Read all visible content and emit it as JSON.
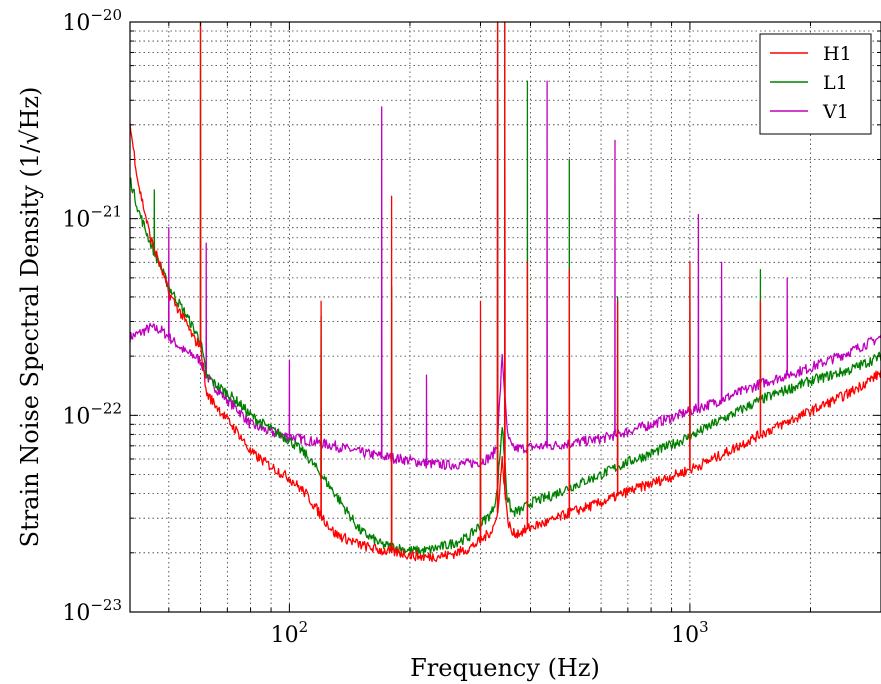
{
  "chart_data": {
    "type": "line",
    "title": "",
    "xlabel": "Frequency (Hz)",
    "ylabel": "Strain Noise Spectral Density (1/√Hz)",
    "x_scale": "log",
    "y_scale": "log",
    "xlim": [
      40,
      3000
    ],
    "ylim": [
      1e-23,
      1e-20
    ],
    "x_ticks": [
      {
        "base": "10",
        "exp": "2",
        "value": 100
      },
      {
        "base": "10",
        "exp": "3",
        "value": 1000
      }
    ],
    "y_ticks": [
      {
        "base": "10",
        "exp": "−23",
        "value": 1e-23
      },
      {
        "base": "10",
        "exp": "−22",
        "value": 1e-22
      },
      {
        "base": "10",
        "exp": "−21",
        "value": 1e-21
      },
      {
        "base": "10",
        "exp": "−20",
        "value": 1e-20
      }
    ],
    "grid": true,
    "legend_position": "top-right",
    "series": [
      {
        "name": "H1",
        "color": "#ff0000",
        "x": [
          40,
          42,
          45,
          48,
          50,
          55,
          58,
          60,
          62,
          65,
          70,
          75,
          80,
          90,
          100,
          110,
          120,
          130,
          150,
          170,
          190,
          200,
          220,
          250,
          280,
          300,
          320,
          330,
          340,
          350,
          360,
          380,
          400,
          450,
          500,
          600,
          700,
          800,
          1000,
          1200,
          1500,
          2000,
          2500,
          3000
        ],
        "y": [
          3e-21,
          1.5e-21,
          8e-22,
          5.5e-22,
          4.2e-22,
          3e-22,
          2.4e-22,
          2.3e-22,
          1.3e-22,
          1.15e-22,
          9.5e-23,
          8e-23,
          6.5e-23,
          5.5e-23,
          4.8e-23,
          4e-23,
          3.1e-23,
          2.5e-23,
          2.2e-23,
          2.05e-23,
          2e-23,
          1.95e-23,
          1.9e-23,
          1.95e-23,
          2.1e-23,
          2.3e-23,
          2.6e-23,
          3e-23,
          6e-23,
          3e-23,
          2.5e-23,
          2.55e-23,
          2.7e-23,
          2.9e-23,
          3.2e-23,
          3.6e-23,
          4.1e-23,
          4.5e-23,
          5.3e-23,
          6.3e-23,
          8e-23,
          1.05e-22,
          1.3e-22,
          1.65e-22
        ]
      },
      {
        "name": "L1",
        "color": "#008000",
        "x": [
          40,
          42,
          45,
          48,
          50,
          55,
          58,
          60,
          62,
          65,
          70,
          75,
          80,
          90,
          100,
          110,
          120,
          130,
          150,
          170,
          190,
          200,
          220,
          250,
          280,
          300,
          320,
          330,
          340,
          350,
          360,
          380,
          400,
          450,
          500,
          600,
          700,
          800,
          1000,
          1200,
          1500,
          2000,
          2500,
          3000
        ],
        "y": [
          1.6e-21,
          1.1e-21,
          7.5e-22,
          5.5e-22,
          4.5e-22,
          3.3e-22,
          2.7e-22,
          2.4e-22,
          1.6e-22,
          1.45e-22,
          1.3e-22,
          1.15e-22,
          1e-22,
          8.5e-23,
          7.5e-23,
          6.3e-23,
          5e-23,
          4e-23,
          2.6e-23,
          2.2e-23,
          2.1e-23,
          2.05e-23,
          2.05e-23,
          2.2e-23,
          2.4e-23,
          2.8e-23,
          3.2e-23,
          4e-23,
          9e-23,
          3.8e-23,
          3.2e-23,
          3.3e-23,
          3.6e-23,
          3.9e-23,
          4.3e-23,
          5e-23,
          5.8e-23,
          6.4e-23,
          7.8e-23,
          9.5e-23,
          1.2e-22,
          1.5e-22,
          1.7e-22,
          2e-22
        ]
      },
      {
        "name": "V1",
        "color": "#bf00bf",
        "x": [
          40,
          42,
          45,
          48,
          50,
          55,
          58,
          60,
          62,
          65,
          70,
          75,
          80,
          90,
          100,
          110,
          120,
          130,
          150,
          170,
          190,
          200,
          220,
          250,
          280,
          300,
          320,
          330,
          340,
          350,
          360,
          380,
          400,
          450,
          500,
          600,
          700,
          800,
          1000,
          1200,
          1500,
          2000,
          2500,
          3000
        ],
        "y": [
          2.5e-22,
          2.6e-22,
          2.8e-22,
          2.7e-22,
          2.5e-22,
          2.1e-22,
          2e-22,
          1.9e-22,
          1.6e-22,
          1.4e-22,
          1.2e-22,
          1.05e-22,
          9e-23,
          8.2e-23,
          7.8e-23,
          7.5e-23,
          7.2e-23,
          7e-23,
          6.5e-23,
          6.2e-23,
          6e-23,
          5.9e-23,
          5.7e-23,
          5.6e-23,
          5.7e-23,
          5.8e-23,
          6.2e-23,
          7e-23,
          2e-22,
          8e-23,
          6.8e-23,
          6.8e-23,
          6.9e-23,
          7e-23,
          7.2e-23,
          7.6e-23,
          8.3e-23,
          9e-23,
          1.05e-22,
          1.2e-22,
          1.45e-22,
          1.75e-22,
          2.1e-22,
          2.5e-22
        ]
      }
    ],
    "spikes": [
      {
        "series": "H1",
        "peaks": [
          [
            60,
            1e-20
          ],
          [
            120,
            3.8e-22
          ],
          [
            180,
            1.3e-21
          ],
          [
            300,
            3.8e-22
          ],
          [
            331,
            1e-20
          ],
          [
            345,
            1e-20
          ],
          [
            393,
            6e-22
          ],
          [
            500,
            5.5e-22
          ],
          [
            660,
            3.8e-22
          ],
          [
            1000,
            6e-22
          ],
          [
            1500,
            3.8e-22
          ]
        ]
      },
      {
        "series": "L1",
        "peaks": [
          [
            46,
            1.4e-21
          ],
          [
            60,
            1e-20
          ],
          [
            120,
            3.2e-22
          ],
          [
            180,
            4.5e-22
          ],
          [
            300,
            2e-22
          ],
          [
            331,
            1e-20
          ],
          [
            345,
            1e-20
          ],
          [
            393,
            5e-21
          ],
          [
            500,
            2e-21
          ],
          [
            660,
            4e-22
          ],
          [
            1000,
            5e-22
          ],
          [
            1500,
            5.5e-22
          ]
        ]
      },
      {
        "series": "V1",
        "peaks": [
          [
            50,
            9e-22
          ],
          [
            62,
            7.5e-22
          ],
          [
            100,
            1.9e-22
          ],
          [
            170,
            3.7e-21
          ],
          [
            220,
            1.6e-22
          ],
          [
            331,
            8e-21
          ],
          [
            345,
            9e-21
          ],
          [
            440,
            5e-21
          ],
          [
            650,
            2.5e-21
          ],
          [
            1050,
            1.05e-21
          ],
          [
            1200,
            6e-22
          ],
          [
            1750,
            5e-22
          ]
        ]
      }
    ]
  }
}
